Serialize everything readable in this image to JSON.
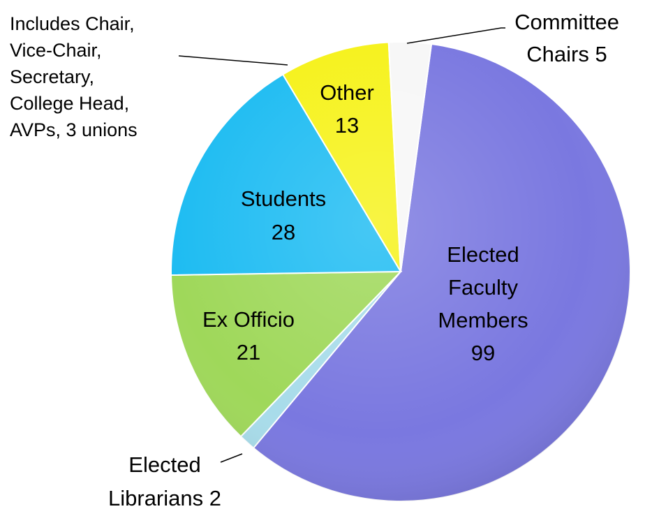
{
  "chart_data": {
    "type": "pie",
    "title": "",
    "slices": [
      {
        "name": "Elected Faculty Members",
        "value": 99,
        "color": "#7a78e0",
        "label_lines": [
          "Elected",
          "Faculty",
          "Members",
          "99"
        ]
      },
      {
        "name": "Elected Librarians",
        "value": 2,
        "color": "#a8dcea",
        "label_lines": [
          "Elected",
          "Librarians 2"
        ]
      },
      {
        "name": "Ex Officio",
        "value": 21,
        "color": "#9fd85a",
        "label_lines": [
          "Ex Officio",
          "21"
        ]
      },
      {
        "name": "Students",
        "value": 28,
        "color": "#1ebcf2",
        "label_lines": [
          "Students",
          "28"
        ]
      },
      {
        "name": "Other",
        "value": 13,
        "color": "#f6f21a",
        "label_lines": [
          "Other",
          "13"
        ]
      },
      {
        "name": "Committee Chairs",
        "value": 5,
        "color": "#f7f7f7",
        "label_lines": [
          "Committee",
          "Chairs 5"
        ]
      }
    ],
    "annotation_lines": [
      "Includes Chair,",
      "Vice-Chair,",
      "Secretary,",
      "College Head,",
      "AVPs, 3 unions"
    ]
  }
}
